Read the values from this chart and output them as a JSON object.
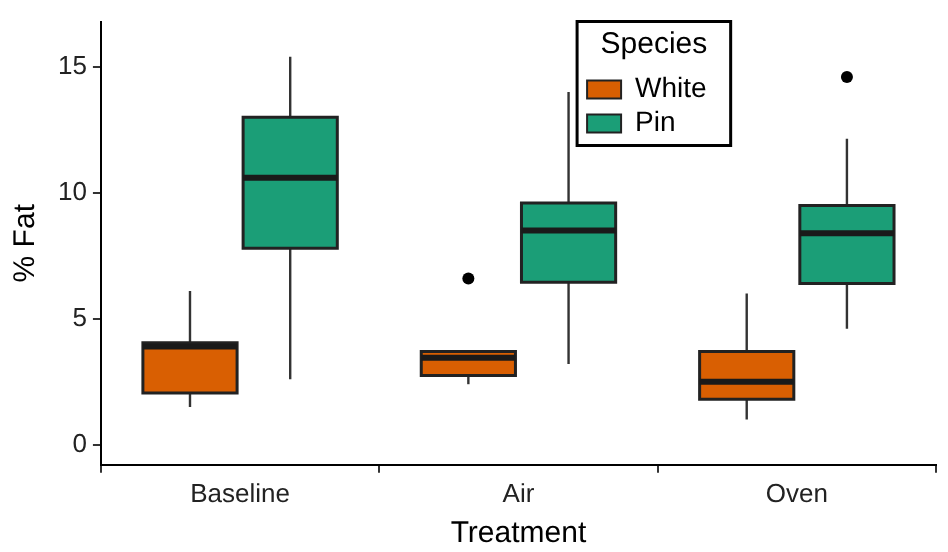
{
  "chart_data": {
    "type": "box",
    "xlabel": "Treatment",
    "ylabel": "% Fat",
    "legend_title": "Species",
    "categories": [
      "Baseline",
      "Air",
      "Oven"
    ],
    "ylim": [
      -0.8,
      16.8
    ],
    "yticks": [
      0,
      5,
      10,
      15
    ],
    "grid": false,
    "legend": "top right",
    "series": [
      {
        "name": "White",
        "color": "#d95f02",
        "boxes": [
          {
            "low": 1.5,
            "q1": 2.05,
            "median": 3.9,
            "q3": 4.05,
            "high": 6.1
          },
          {
            "low": 2.4,
            "q1": 2.75,
            "median": 3.45,
            "q3": 3.7,
            "high": 3.7,
            "outliers": [
              6.6
            ]
          },
          {
            "low": 1.0,
            "q1": 1.8,
            "median": 2.5,
            "q3": 3.7,
            "high": 6.0
          }
        ]
      },
      {
        "name": "Pin",
        "color": "#1b9e77",
        "boxes": [
          {
            "low": 2.6,
            "q1": 7.8,
            "median": 10.6,
            "q3": 13.0,
            "high": 15.4
          },
          {
            "low": 3.2,
            "q1": 6.45,
            "median": 8.5,
            "q3": 9.6,
            "high": 14.0
          },
          {
            "low": 4.6,
            "q1": 6.4,
            "median": 8.4,
            "q3": 9.5,
            "high": 12.15,
            "outliers": [
              14.6
            ]
          }
        ]
      }
    ]
  }
}
